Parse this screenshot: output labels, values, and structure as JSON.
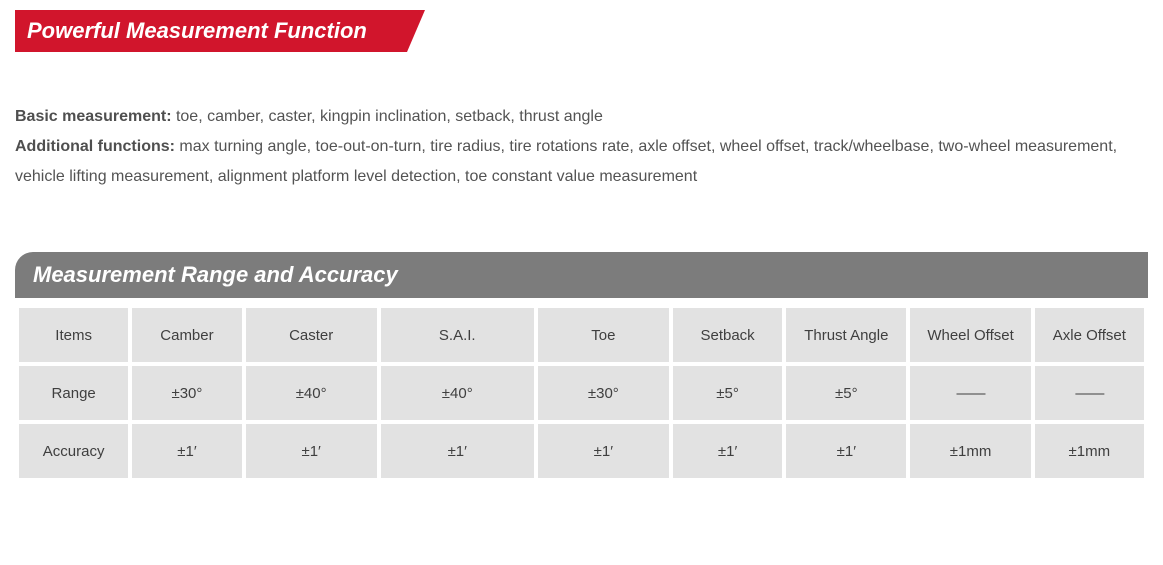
{
  "section1": {
    "title": "Powerful Measurement Function",
    "basic_label": "Basic measurement:",
    "basic_text": " toe, camber, caster, kingpin inclination, setback, thrust angle",
    "additional_label": "Additional functions:",
    "additional_text": " max turning angle, toe-out-on-turn, tire radius, tire rotations rate, axle offset, wheel offset, track/wheelbase, two-wheel measurement, vehicle lifting measurement, alignment platform level detection, toe constant value measurement"
  },
  "section2": {
    "title": "Measurement Range and Accuracy"
  },
  "table": {
    "columns": [
      "Items",
      "Camber",
      "Caster",
      "S.A.I.",
      "Toe",
      "Setback",
      "Thrust Angle",
      "Wheel Offset",
      "Axle Offset"
    ],
    "rows": [
      {
        "label": "Range",
        "cells": [
          "±30°",
          "±40°",
          "±40°",
          "±30°",
          "±5°",
          "±5°",
          "——",
          "——"
        ]
      },
      {
        "label": "Accuracy",
        "cells": [
          "±1′",
          "±1′",
          "±1′",
          "±1′",
          "±1′",
          "±1′",
          "±1mm",
          "±1mm"
        ]
      }
    ],
    "col_widths_pct": [
      10,
      10,
      12,
      14,
      12,
      10,
      11,
      11,
      10
    ],
    "header_bg": "#e2e2e2",
    "cell_bg": "#e2e2e2",
    "text_color": "#3f3f3f"
  },
  "colors": {
    "red_banner": "#d1152c",
    "gray_banner": "#7c7c7c",
    "body_text": "#535353"
  }
}
